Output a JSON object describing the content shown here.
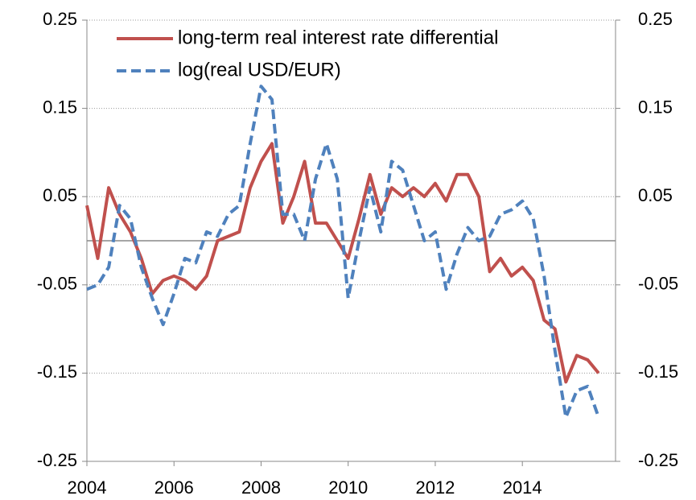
{
  "chart_data": {
    "type": "line",
    "x": [
      2004.0,
      2004.25,
      2004.5,
      2004.75,
      2005.0,
      2005.25,
      2005.5,
      2005.75,
      2006.0,
      2006.25,
      2006.5,
      2006.75,
      2007.0,
      2007.25,
      2007.5,
      2007.75,
      2008.0,
      2008.25,
      2008.5,
      2008.75,
      2009.0,
      2009.25,
      2009.5,
      2009.75,
      2010.0,
      2010.25,
      2010.5,
      2010.75,
      2011.0,
      2011.25,
      2011.5,
      2011.75,
      2012.0,
      2012.25,
      2012.5,
      2012.75,
      2013.0,
      2013.25,
      2013.5,
      2013.75,
      2014.0,
      2014.25,
      2014.5,
      2014.75,
      2015.0,
      2015.25,
      2015.5,
      2015.75
    ],
    "series": [
      {
        "name": "long-term real interest rate differential",
        "color": "#c0504d",
        "dash": false,
        "values": [
          0.04,
          -0.02,
          0.06,
          0.03,
          0.01,
          -0.02,
          -0.06,
          -0.045,
          -0.04,
          -0.045,
          -0.055,
          -0.04,
          0.0,
          0.005,
          0.01,
          0.06,
          0.09,
          0.11,
          0.02,
          0.05,
          0.09,
          0.02,
          0.02,
          0.0,
          -0.02,
          0.025,
          0.075,
          0.03,
          0.06,
          0.05,
          0.06,
          0.05,
          0.065,
          0.045,
          0.075,
          0.075,
          0.05,
          -0.035,
          -0.02,
          -0.04,
          -0.03,
          -0.045,
          -0.09,
          -0.1,
          -0.16,
          -0.13,
          -0.135,
          -0.15
        ]
      },
      {
        "name": "log(real USD/EUR)",
        "color": "#4f81bd",
        "dash": true,
        "axis": "y2",
        "values": [
          -0.055,
          -0.05,
          -0.03,
          0.04,
          0.025,
          -0.03,
          -0.065,
          -0.095,
          -0.06,
          -0.02,
          -0.025,
          0.01,
          0.005,
          0.03,
          0.04,
          0.11,
          0.175,
          0.16,
          0.03,
          0.03,
          0.0,
          0.07,
          0.11,
          0.07,
          -0.065,
          0.0,
          0.06,
          0.01,
          0.09,
          0.08,
          0.04,
          0.0,
          0.01,
          -0.055,
          -0.015,
          0.015,
          0.0,
          0.005,
          0.03,
          0.035,
          0.045,
          0.025,
          -0.04,
          -0.125,
          -0.2,
          -0.17,
          -0.165,
          -0.2
        ]
      }
    ],
    "xlim": [
      2004,
      2016.14
    ],
    "xticks": [
      2004,
      2006,
      2008,
      2010,
      2012,
      2014
    ],
    "ylim": [
      -0.25,
      0.25
    ],
    "yticks": [
      -0.25,
      -0.15,
      -0.05,
      0.05,
      0.15,
      0.25
    ],
    "y2lim": [
      -0.25,
      0.25
    ],
    "y2ticks": [
      -0.25,
      -0.15,
      -0.05,
      0.05,
      0.15,
      0.25
    ],
    "grid": true,
    "legend": "upper left"
  }
}
